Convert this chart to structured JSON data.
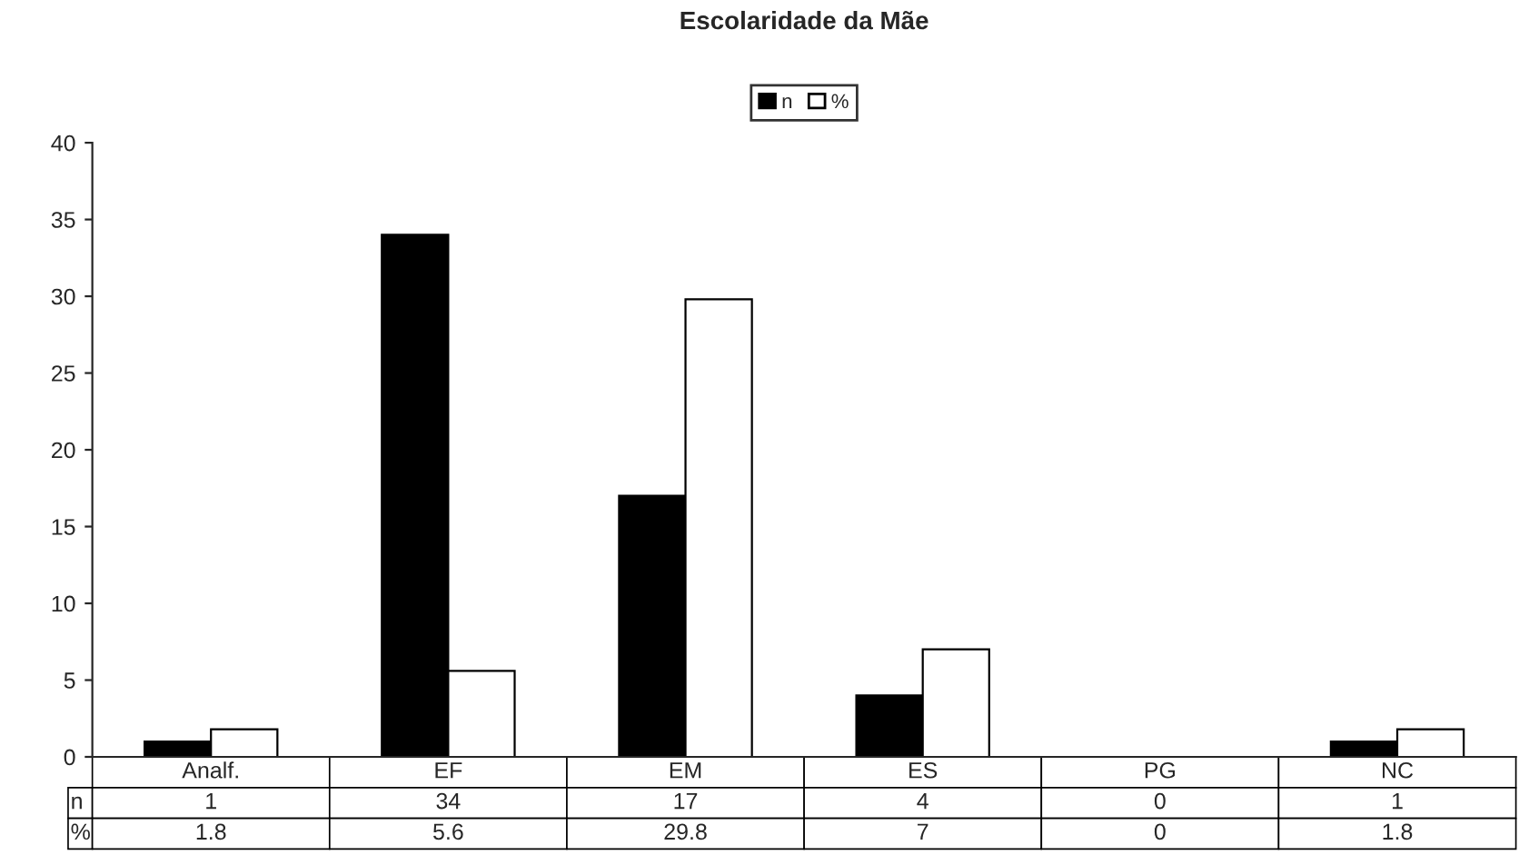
{
  "chart_data": {
    "type": "bar",
    "title": "Escolaridade da Mãe",
    "categories": [
      "Analf.",
      "EF",
      "EM",
      "ES",
      "PG",
      "NC"
    ],
    "series": [
      {
        "name": "n",
        "color": "#000000",
        "values": [
          1,
          34,
          17,
          4,
          0,
          1
        ]
      },
      {
        "name": "%",
        "color": "#ffffff",
        "values": [
          1.8,
          5.6,
          29.8,
          7,
          0,
          1.8
        ]
      }
    ],
    "ylim": [
      0,
      40
    ],
    "yticks": [
      0,
      5,
      10,
      15,
      20,
      25,
      30,
      35,
      40
    ],
    "data_labels": true,
    "legend": "top",
    "grid": false
  }
}
